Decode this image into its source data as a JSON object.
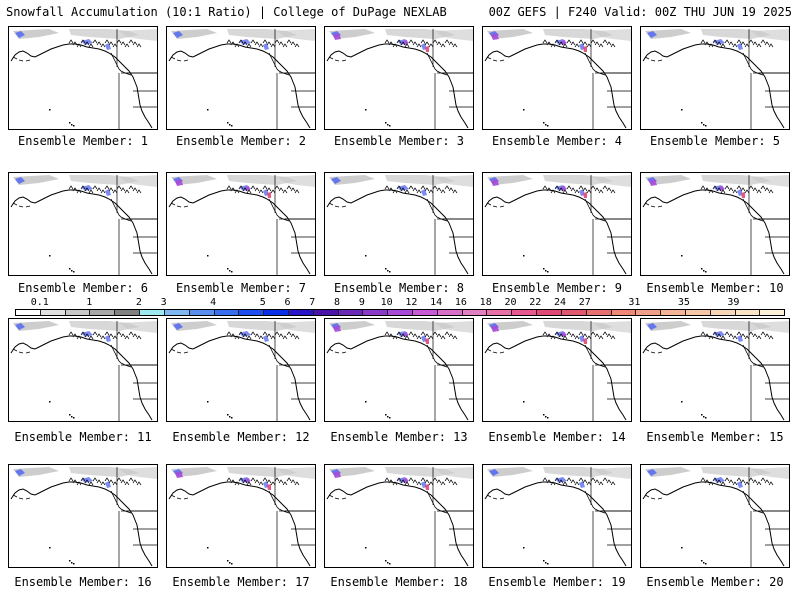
{
  "header": {
    "title_left": "Snowfall Accumulation (10:1 Ratio) | College of DuPage NEXLAB",
    "title_right": "00Z GEFS | F240 Valid: 00Z THU JUN 19 2025"
  },
  "caption_prefix": "Ensemble Member: ",
  "members": [
    {
      "number": "1",
      "snow": "light"
    },
    {
      "number": "2",
      "snow": "light"
    },
    {
      "number": "3",
      "snow": "moderate"
    },
    {
      "number": "4",
      "snow": "moderate"
    },
    {
      "number": "5",
      "snow": "light"
    },
    {
      "number": "6",
      "snow": "light"
    },
    {
      "number": "7",
      "snow": "moderate"
    },
    {
      "number": "8",
      "snow": "light"
    },
    {
      "number": "9",
      "snow": "moderate"
    },
    {
      "number": "10",
      "snow": "moderate"
    },
    {
      "number": "11",
      "snow": "light"
    },
    {
      "number": "12",
      "snow": "light"
    },
    {
      "number": "13",
      "snow": "moderate"
    },
    {
      "number": "14",
      "snow": "moderate"
    },
    {
      "number": "15",
      "snow": "light"
    },
    {
      "number": "16",
      "snow": "light"
    },
    {
      "number": "17",
      "snow": "moderate"
    },
    {
      "number": "18",
      "snow": "moderate"
    },
    {
      "number": "19",
      "snow": "light"
    },
    {
      "number": "20",
      "snow": "light"
    }
  ],
  "color_scale": {
    "labels": [
      "0.1",
      "1",
      "2",
      "3",
      "4",
      "5",
      "6",
      "7",
      "8",
      "9",
      "10",
      "12",
      "14",
      "16",
      "18",
      "20",
      "22",
      "24",
      "27",
      "31",
      "35",
      "39"
    ],
    "colors": [
      "#ffffff",
      "#e0e0e0",
      "#c8c8c8",
      "#a8a8a8",
      "#808080",
      "#9ee8f0",
      "#7fb8f0",
      "#5a8ff0",
      "#3a6ef0",
      "#1e4ef0",
      "#0a2ee8",
      "#2a14c8",
      "#4a14a8",
      "#6a2ab8",
      "#8a3ac8",
      "#a84ad8",
      "#c85ad8",
      "#d870c8",
      "#e080c0",
      "#e870a8",
      "#e85890",
      "#e04878",
      "#e05870",
      "#e87070",
      "#f08878",
      "#f0a088",
      "#f4b498",
      "#f6c6a8",
      "#f8d6b8",
      "#fae4c8",
      "#fcf0d8"
    ]
  },
  "map_colors": {
    "coast": "#000000",
    "snow_light": "#c8c8c8",
    "snow_blue": "#5a6ef0",
    "snow_purple": "#a84ad8",
    "snow_pink": "#e04878"
  }
}
